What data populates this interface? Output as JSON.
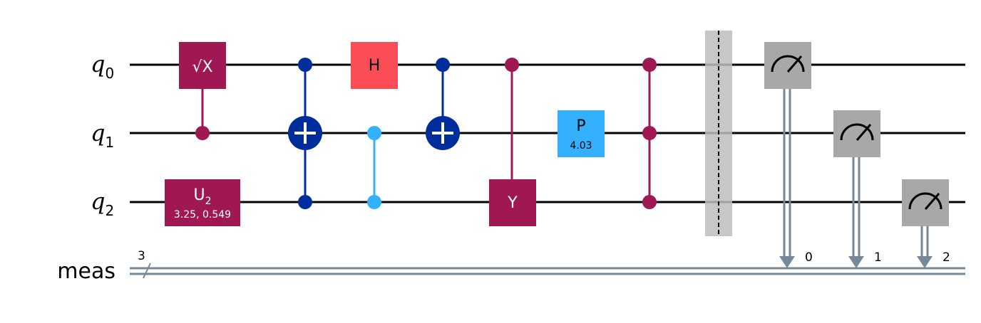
{
  "colors": {
    "wire": "#000000",
    "classical": "#778899",
    "plum": "#9f1853",
    "dark_blue": "#002d9c",
    "light_blue": "#33b1ff",
    "red": "#fa4d56",
    "measure_gray": "#a8a8a8",
    "barrier": "#bdbdbd"
  },
  "wires": {
    "q0": {
      "name": "q",
      "sub": "0"
    },
    "q1": {
      "name": "q",
      "sub": "1"
    },
    "q2": {
      "name": "q",
      "sub": "2"
    },
    "meas": {
      "name": "meas",
      "width": "3"
    }
  },
  "gates": {
    "sx": {
      "label": "√X"
    },
    "u2": {
      "label": "U",
      "sub": "2",
      "params": "3.25, 0.549"
    },
    "h": {
      "label": "H"
    },
    "y": {
      "label": "Y"
    },
    "p": {
      "label": "P",
      "params": "4.03"
    }
  },
  "measurements": [
    {
      "qubit": "q0",
      "clbit": "0"
    },
    {
      "qubit": "q1",
      "clbit": "1"
    },
    {
      "qubit": "q2",
      "clbit": "2"
    }
  ]
}
